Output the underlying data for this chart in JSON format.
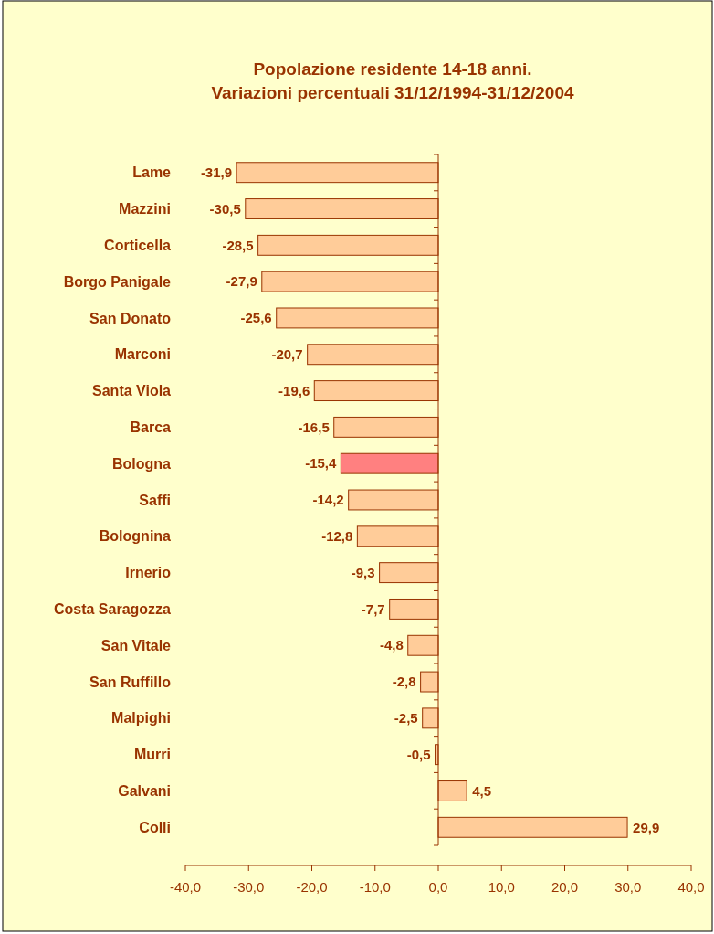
{
  "chart_data": {
    "type": "bar",
    "orientation": "horizontal",
    "title": "Popolazione residente 14-18 anni.\nVariazioni percentuali 31/12/1994-31/12/2004",
    "categories": [
      "Lame",
      "Mazzini",
      "Corticella",
      "Borgo Panigale",
      "San Donato",
      "Marconi",
      "Santa Viola",
      "Barca",
      "Bologna",
      "Saffi",
      "Bolognina",
      "Irnerio",
      "Costa Saragozza",
      "San Vitale",
      "San Ruffillo",
      "Malpighi",
      "Murri",
      "Galvani",
      "Colli"
    ],
    "values": [
      -31.9,
      -30.5,
      -28.5,
      -27.9,
      -25.6,
      -20.7,
      -19.6,
      -16.5,
      -15.4,
      -14.2,
      -12.8,
      -9.3,
      -7.7,
      -4.8,
      -2.8,
      -2.5,
      -0.5,
      4.5,
      29.9
    ],
    "value_labels": [
      "-31,9",
      "-30,5",
      "-28,5",
      "-27,9",
      "-25,6",
      "-20,7",
      "-19,6",
      "-16,5",
      "-15,4",
      "-14,2",
      "-12,8",
      "-9,3",
      "-7,7",
      "-4,8",
      "-2,8",
      "-2,5",
      "-0,5",
      "4,5",
      "29,9"
    ],
    "colors": [
      "#ffcc99",
      "#ffcc99",
      "#ffcc99",
      "#ffcc99",
      "#ffcc99",
      "#ffcc99",
      "#ffcc99",
      "#ffcc99",
      "#ff8080",
      "#ffcc99",
      "#ffcc99",
      "#ffcc99",
      "#ffcc99",
      "#ffcc99",
      "#ffcc99",
      "#ffcc99",
      "#ffcc99",
      "#ffcc99",
      "#ffcc99"
    ],
    "xlim": [
      -40,
      40
    ],
    "xticks": [
      {
        "value": -40,
        "label": "-40,0"
      },
      {
        "value": -30,
        "label": "-30,0"
      },
      {
        "value": -20,
        "label": "-20,0"
      },
      {
        "value": -10,
        "label": "-10,0"
      },
      {
        "value": 0,
        "label": "0,0"
      },
      {
        "value": 10,
        "label": "10,0"
      },
      {
        "value": 20,
        "label": "20,0"
      },
      {
        "value": 30,
        "label": "30,0"
      },
      {
        "value": 40,
        "label": "40,0"
      }
    ],
    "ref_lines": [
      {
        "axis": "x",
        "value": 0,
        "color": "#993300"
      }
    ],
    "grid": false
  }
}
